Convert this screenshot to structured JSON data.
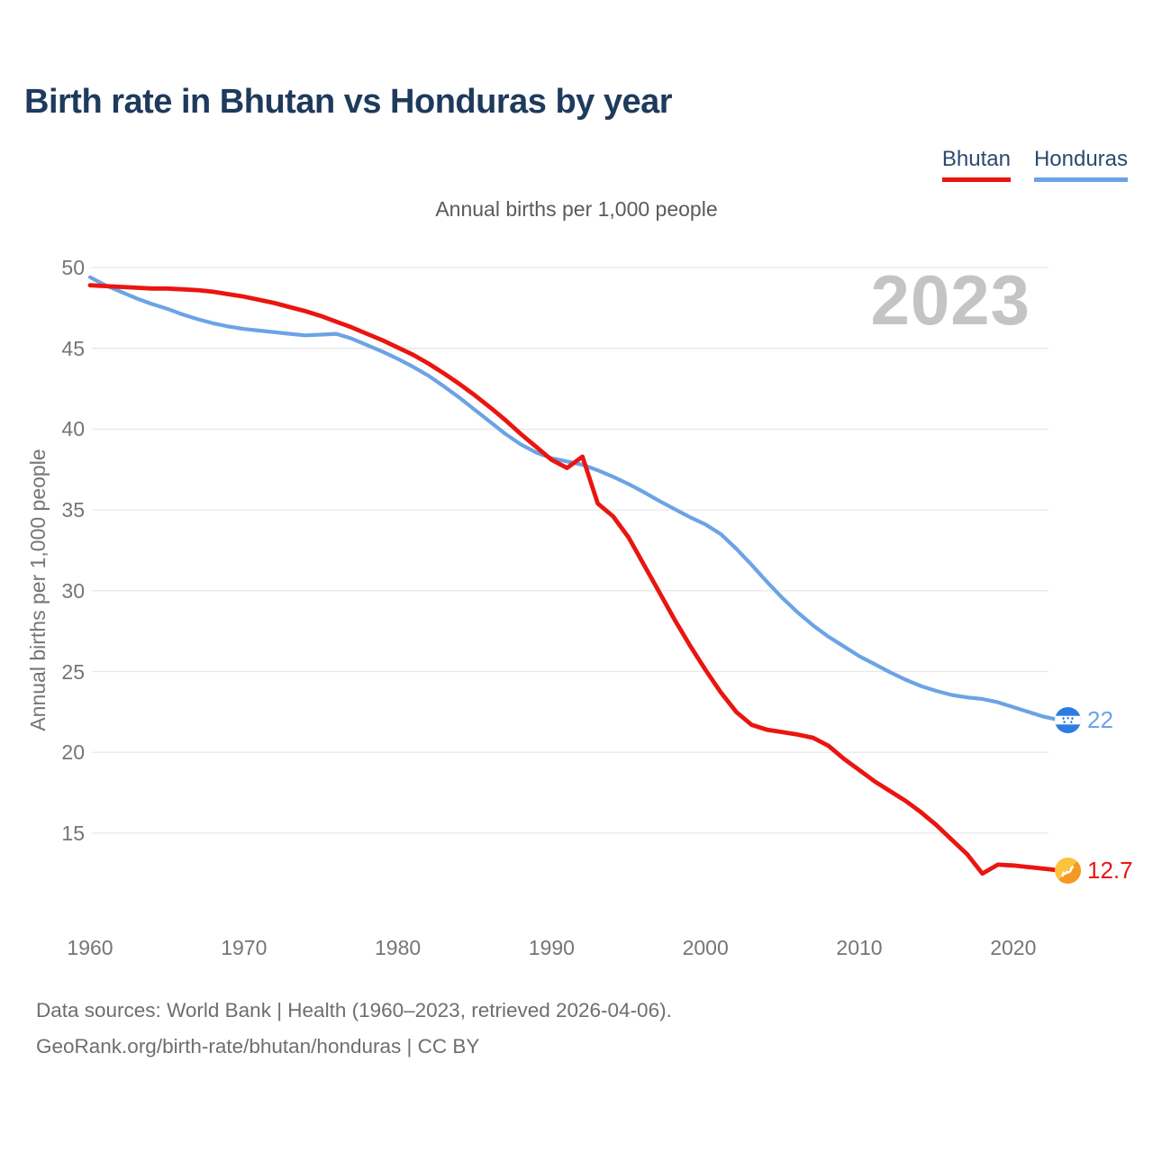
{
  "header": {
    "title": "Birth rate in Bhutan vs Honduras by year",
    "subtitle": "Annual births per 1,000 people"
  },
  "legend": {
    "position": "top-right",
    "items": [
      {
        "label": "Bhutan",
        "color": "#ea1510"
      },
      {
        "label": "Honduras",
        "color": "#6ba3e5"
      }
    ]
  },
  "footer": {
    "line1": "Data sources: World Bank | Health (1960–2023, retrieved 2026-04-06).",
    "line2": "GeoRank.org/birth-rate/bhutan/honduras | CC BY"
  },
  "chart_data": {
    "type": "line",
    "title": "Birth rate in Bhutan vs Honduras by year",
    "subtitle": "Annual births per 1,000 people",
    "ylabel": "Annual births per 1,000 people",
    "xlabel": "",
    "watermark": "2023",
    "grid": true,
    "x_start": 1960,
    "x_step": 1,
    "x_end": 2023,
    "x_ticks": [
      1960,
      1970,
      1980,
      1990,
      2000,
      2010,
      2020
    ],
    "y_ticks": [
      15,
      20,
      25,
      30,
      35,
      40,
      45,
      50
    ],
    "y_max": 50,
    "ylim": [
      12,
      50
    ],
    "colors": {
      "gridline": "#e8e8e8",
      "tick_text": "#757575",
      "watermark": "#c4c4c4",
      "flag_blue": "#2b7de1",
      "flag_yellow": "#fcc43d",
      "flag_orange": "#f49a22"
    },
    "series": [
      {
        "name": "Bhutan",
        "color": "#ea1510",
        "line_width": 4.8,
        "end_label": "12.7",
        "flag": "bhutan-flag",
        "values": [
          48.9,
          48.85,
          48.8,
          48.75,
          48.7,
          48.7,
          48.65,
          48.6,
          48.5,
          48.35,
          48.2,
          48.0,
          47.8,
          47.55,
          47.3,
          47.0,
          46.65,
          46.3,
          45.9,
          45.5,
          45.05,
          44.6,
          44.05,
          43.45,
          42.8,
          42.1,
          41.35,
          40.55,
          39.7,
          38.9,
          38.1,
          37.6,
          38.3,
          35.4,
          34.6,
          33.3,
          31.6,
          29.9,
          28.2,
          26.6,
          25.1,
          23.7,
          22.5,
          21.7,
          21.4,
          21.25,
          21.1,
          20.9,
          20.4,
          19.6,
          18.9,
          18.2,
          17.6,
          17.0,
          16.3,
          15.5,
          14.6,
          13.7,
          12.5,
          13.05,
          13.0,
          12.9,
          12.8,
          12.7
        ]
      },
      {
        "name": "Honduras",
        "color": "#6ba3e5",
        "line_width": 4.2,
        "end_label": "22",
        "flag": "honduras-flag",
        "values": [
          49.4,
          48.9,
          48.5,
          48.1,
          47.75,
          47.45,
          47.1,
          46.8,
          46.55,
          46.35,
          46.2,
          46.1,
          46.0,
          45.9,
          45.8,
          45.85,
          45.9,
          45.6,
          45.2,
          44.8,
          44.35,
          43.85,
          43.3,
          42.65,
          41.95,
          41.2,
          40.45,
          39.7,
          39.05,
          38.55,
          38.2,
          38.0,
          37.8,
          37.45,
          37.05,
          36.6,
          36.1,
          35.55,
          35.05,
          34.55,
          34.1,
          33.5,
          32.6,
          31.6,
          30.55,
          29.55,
          28.65,
          27.85,
          27.15,
          26.55,
          25.95,
          25.45,
          24.95,
          24.5,
          24.1,
          23.8,
          23.55,
          23.4,
          23.3,
          23.1,
          22.8,
          22.5,
          22.2,
          22.0
        ]
      }
    ]
  }
}
